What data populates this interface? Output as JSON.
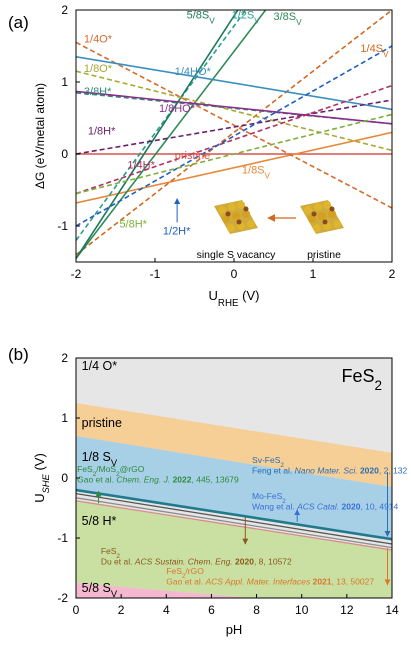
{
  "chart_data": [
    {
      "panel": "(a)",
      "type": "line",
      "xlabel": "U",
      "xlabel_sub": "RHE",
      "xlabel_unit": " (V)",
      "ylabel": "ΔG (eV/metal atom)",
      "xlim": [
        -2,
        2
      ],
      "ylim": [
        -1.5,
        2
      ],
      "xticks": [
        -2,
        -1,
        0,
        1,
        2
      ],
      "yticks": [
        -1,
        0,
        1,
        2
      ],
      "xticklabels": [
        "-2",
        "-1",
        "0",
        "1",
        "2"
      ],
      "yticklabels": [
        "-1",
        "0",
        "1",
        "2"
      ],
      "inset_labels": [
        "single S vacancy",
        "pristine"
      ],
      "series": [
        {
          "name": "pristine",
          "color": "#d9534f",
          "dash": "solid",
          "x": [
            -2,
            2
          ],
          "y": [
            0,
            0
          ]
        },
        {
          "name": "1/8S",
          "sub": "V",
          "color": "#e8883a",
          "dash": "solid",
          "x": [
            -2,
            2
          ],
          "y": [
            -0.68,
            0.3
          ]
        },
        {
          "name": "1/4S",
          "sub": "V",
          "color": "#d2691e",
          "dash": "dashed",
          "x": [
            -2,
            2
          ],
          "y": [
            -1.4,
            2.0
          ]
        },
        {
          "name": "3/8S",
          "sub": "V",
          "color": "#2e8b57",
          "dash": "solid",
          "x": [
            -2,
            0.4
          ],
          "y": [
            -1.45,
            2.0
          ]
        },
        {
          "name": "1/2S",
          "sub": "V",
          "color": "#2a9d8f",
          "dash": "dashed",
          "x": [
            -2,
            0.15
          ],
          "y": [
            -1.2,
            2.0
          ]
        },
        {
          "name": "5/8S",
          "sub": "V",
          "color": "#1b7a5a",
          "dash": "solid",
          "x": [
            -2,
            0.05
          ],
          "y": [
            -1.45,
            2.0
          ]
        },
        {
          "name": "1/4O*",
          "color": "#d96a2b",
          "dash": "dashed",
          "x": [
            -2,
            2
          ],
          "y": [
            1.55,
            -0.75
          ]
        },
        {
          "name": "1/8O*",
          "color": "#a8a832",
          "dash": "dashed",
          "x": [
            -2,
            2
          ],
          "y": [
            1.15,
            0.05
          ]
        },
        {
          "name": "1/4HO*",
          "color": "#3a8fbf",
          "dash": "solid",
          "x": [
            -2,
            2
          ],
          "y": [
            1.35,
            0.62
          ]
        },
        {
          "name": "3/8H*",
          "color": "#2e8b7a",
          "dash": "dashed",
          "x": [
            -2,
            2
          ],
          "y": [
            0.85,
            0.42
          ]
        },
        {
          "name": "1/8HO*",
          "color": "#8b2f8b",
          "dash": "solid",
          "x": [
            -2,
            2
          ],
          "y": [
            0.87,
            0.42
          ]
        },
        {
          "name": "1/8H*",
          "color": "#6a1f6a",
          "dash": "dashed",
          "x": [
            -2,
            2
          ],
          "y": [
            0.0,
            0.75
          ]
        },
        {
          "name": "1/4H*",
          "color": "#b03060",
          "dash": "dashed",
          "x": [
            -2,
            2
          ],
          "y": [
            -0.55,
            0.95
          ]
        },
        {
          "name": "1/2H*",
          "color": "#1f5fbf",
          "dash": "dashed",
          "x": [
            -2,
            2
          ],
          "y": [
            -1.0,
            1.5
          ]
        },
        {
          "name": "5/8H*",
          "color": "#7fae3a",
          "dash": "dashed",
          "x": [
            -2,
            2
          ],
          "y": [
            -0.55,
            0.55
          ]
        }
      ],
      "annotations": [
        {
          "text": "1/4O*",
          "color": "#d96a2b",
          "x": -1.9,
          "y": 1.55
        },
        {
          "text": "1/8O*",
          "color": "#a8a832",
          "x": -1.9,
          "y": 1.14
        },
        {
          "text": "3/8H*",
          "color": "#2e8b7a",
          "x": -1.9,
          "y": 0.82
        },
        {
          "text": "1/8H*",
          "color": "#6a1f6a",
          "x": -1.85,
          "y": 0.27
        },
        {
          "text": "1/4H*",
          "color": "#b03060",
          "x": -1.35,
          "y": -0.2
        },
        {
          "text": "1/8HO*",
          "color": "#8b2f8b",
          "x": -0.95,
          "y": 0.58
        },
        {
          "text": "1/4HO*",
          "color": "#3a8fbf",
          "x": -0.75,
          "y": 1.1
        },
        {
          "text": "pristine",
          "color": "#d9534f",
          "x": -0.75,
          "y": -0.07
        },
        {
          "text": "1/8S",
          "sub": "V",
          "color": "#e8883a",
          "x": 0.1,
          "y": -0.27
        },
        {
          "text": "1/2H*",
          "color": "#1f5fbf",
          "x": -0.9,
          "y": -1.12
        },
        {
          "text": "5/8H*",
          "color": "#7fae3a",
          "x": -1.45,
          "y": -1.02
        },
        {
          "text": "5/8S",
          "sub": "V",
          "color": "#1b7a5a",
          "x": -0.6,
          "y": 1.88
        },
        {
          "text": "1/2S",
          "sub": "V",
          "color": "#2a9d8f",
          "x": -0.03,
          "y": 1.88
        },
        {
          "text": "3/8S",
          "sub": "V",
          "color": "#2e8b57",
          "x": 0.5,
          "y": 1.86
        },
        {
          "text": "1/4S",
          "sub": "V",
          "color": "#d2691e",
          "x": 1.6,
          "y": 1.42
        }
      ]
    },
    {
      "panel": "(b)",
      "type": "area",
      "title": "FeS",
      "title_sub": "2",
      "xlabel": "pH",
      "ylabel": "U",
      "ylabel_sub": "SHE",
      "ylabel_unit": " (V)",
      "xlim": [
        0,
        14
      ],
      "ylim": [
        -2,
        2
      ],
      "xticks": [
        0,
        2,
        4,
        6,
        8,
        10,
        12,
        14
      ],
      "yticks": [
        -2,
        -1,
        0,
        1,
        2
      ],
      "xticklabels": [
        "0",
        "2",
        "4",
        "6",
        "8",
        "10",
        "12",
        "14"
      ],
      "yticklabels": [
        "-2",
        "-1",
        "0",
        "1",
        "2"
      ],
      "regions": [
        {
          "name": "1/4 O*",
          "color": "#e6e6e6",
          "top_left": 2.0,
          "top_right": 2.0,
          "bottom_left": 1.25,
          "bottom_right": 0.42
        },
        {
          "name": "pristine",
          "color": "#f6cf97",
          "top_left": 1.25,
          "top_right": 0.42,
          "bottom_left": 0.7,
          "bottom_right": -0.15
        },
        {
          "name": "1/8 S",
          "sub": "V",
          "color": "#a7cfe6",
          "top_left": 0.7,
          "top_right": -0.15,
          "bottom_left": -0.2,
          "bottom_right": -1.02
        },
        {
          "name": "5/8 H*",
          "color": "#c9e0a2",
          "top_left": -0.38,
          "top_right": -1.2,
          "bottom_left": -1.75,
          "bottom_right": -2.2
        },
        {
          "name": "5/8 S",
          "sub": "V",
          "color": "#f4b8cf",
          "top_left": -1.75,
          "top_right": -2.2,
          "bottom_left": -2.0,
          "bottom_right": -2.0
        }
      ],
      "region_labels": [
        {
          "text": "1/4 O*",
          "x": 0.25,
          "y": 1.8
        },
        {
          "text": "pristine",
          "x": 0.25,
          "y": 0.85
        },
        {
          "text": "1/8 S",
          "sub": "V",
          "x": 0.25,
          "y": 0.28
        },
        {
          "text": "5/8 H*",
          "x": 0.25,
          "y": -0.78
        },
        {
          "text": "5/8 S",
          "sub": "V",
          "x": 0.25,
          "y": -1.9
        }
      ],
      "boundary_lines": [
        {
          "color": "#1f7a8c",
          "width": 2.6,
          "y_left": -0.2,
          "y_right": -1.02
        },
        {
          "color": "#555555",
          "width": 1.3,
          "y_left": -0.26,
          "y_right": -1.1
        },
        {
          "color": "#8a8a8a",
          "width": 1.3,
          "y_left": -0.33,
          "y_right": -1.16
        },
        {
          "color": "#d98c8c",
          "width": 1.3,
          "y_left": -0.38,
          "y_right": -1.2
        }
      ],
      "references": [
        {
          "line1": "Sv-FeS",
          "line1_sub": "2",
          "line2_pre": "Feng et al. ",
          "journal": "Nano Mater. Sci.",
          "year": "2020",
          "line2_post": ", 2, 132",
          "color": "#2b6cb0",
          "x": 7.8,
          "y": 0.25,
          "arrow_x": 13.8,
          "arrow_from": 0.1,
          "arrow_to": -0.97
        },
        {
          "line1": "FeS",
          "line1_sub": "2",
          "line1_post": "/MoS",
          "line1_sub2": "2",
          "line1_post2": "@rGO",
          "line2_pre": "Gao et al. ",
          "journal": "Chem. Eng. J.",
          "year": "2022",
          "line2_post": ", 445, 13679",
          "color": "#2e8b3a",
          "x": 0.05,
          "y": 0.1,
          "arrow_x": 1.0,
          "arrow_from": -0.42,
          "arrow_to": -0.22
        },
        {
          "line1": "Mo-FeS",
          "line1_sub": "2",
          "line2_pre": "Wang et al. ",
          "journal": "ACS Catal.",
          "year": "2020",
          "line2_post": ", 10, 4914",
          "color": "#3a6fd8",
          "x": 7.8,
          "y": -0.35,
          "arrow_x": 9.8,
          "arrow_from": -0.73,
          "arrow_to": -0.53
        },
        {
          "line1": "FeS",
          "line1_sub": "2",
          "line2_pre": "Du et al. ",
          "journal": "ACS Sustain. Chem. Eng.",
          "year": "2020",
          "line2_post": ", 8, 10572",
          "color": "#8a5a1a",
          "x": 1.1,
          "y": -1.27,
          "arrow_x": 7.5,
          "arrow_from": -0.65,
          "arrow_to": -1.1
        },
        {
          "line1": "FeS",
          "line1_sub": "2",
          "line1_post": "/rGO",
          "line2_pre": "Gao et al. ",
          "journal": "ACS Appl. Mater. Interfaces",
          "year": "2021",
          "line2_post": ", 13, 50027",
          "color": "#d9772b",
          "x": 4.0,
          "y": -1.6,
          "arrow_x": 13.8,
          "arrow_from": -1.17,
          "arrow_to": -1.78
        }
      ]
    }
  ]
}
